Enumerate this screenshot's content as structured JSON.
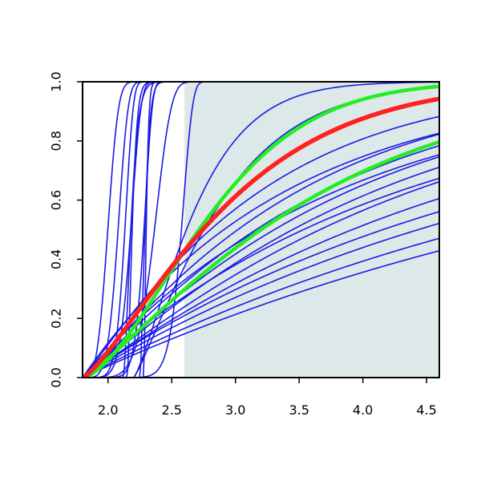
{
  "chart_data": {
    "type": "line",
    "title": "",
    "xlabel": "",
    "ylabel": "",
    "xlim": [
      1.8,
      4.6
    ],
    "ylim": [
      0.0,
      1.0
    ],
    "x_ticks": [
      "2.0",
      "2.5",
      "3.0",
      "3.5",
      "4.0",
      "4.5"
    ],
    "y_ticks": [
      "0.0",
      "0.2",
      "0.4",
      "0.6",
      "0.8",
      "1.0"
    ],
    "grid": false,
    "legend": "none",
    "shaded_region": {
      "x": [
        2.6,
        4.6
      ],
      "y": [
        0.0,
        1.0
      ],
      "color": "#dde8e8"
    },
    "colors": {
      "blue": "#1a1ae6",
      "red": "#ff2020",
      "green": "#22ee22"
    },
    "series": [
      {
        "color": "blue",
        "width": 1.6,
        "x0": 1.8,
        "k": 0.8,
        "n": 12.0
      },
      {
        "color": "blue",
        "width": 1.6,
        "x0": 1.8,
        "k": 0.5,
        "n": 10.0
      },
      {
        "color": "blue",
        "width": 1.6,
        "x0": 1.8,
        "k": 0.6,
        "n": 6.0
      },
      {
        "color": "blue",
        "width": 1.6,
        "x0": 1.8,
        "k": 0.4,
        "n": 6.5
      },
      {
        "color": "blue",
        "width": 1.6,
        "x0": 1.8,
        "k": 0.35,
        "n": 7.0
      },
      {
        "color": "blue",
        "width": 1.6,
        "x0": 1.8,
        "k": 0.3,
        "n": 5.0
      },
      {
        "color": "blue",
        "width": 1.6,
        "x0": 2.12,
        "k": 0.075,
        "n": 1.5
      },
      {
        "color": "blue",
        "width": 1.6,
        "x0": 2.15,
        "k": 0.05,
        "n": 1.5
      },
      {
        "color": "blue",
        "width": 1.6,
        "x0": 2.25,
        "k": 0.05,
        "n": 1.5
      },
      {
        "color": "blue",
        "width": 1.6,
        "x0": 2.28,
        "k": 0.025,
        "n": 1.5
      },
      {
        "color": "blue",
        "width": 1.6,
        "x0": 1.8,
        "k": 0.22,
        "n": 3.5
      },
      {
        "color": "blue",
        "width": 1.6,
        "x0": 2.2,
        "k": 0.55,
        "n": 1.3
      },
      {
        "color": "blue",
        "width": 1.6,
        "x0": 2.2,
        "k": 0.75,
        "n": 1.2
      },
      {
        "color": "blue",
        "width": 1.6,
        "x0": 1.8,
        "k": 1.4,
        "n": 1.1
      },
      {
        "color": "blue",
        "width": 1.6,
        "x0": 1.8,
        "k": 1.7,
        "n": 1.1
      },
      {
        "color": "blue",
        "width": 1.6,
        "x0": 1.8,
        "k": 1.9,
        "n": 1.1
      },
      {
        "color": "blue",
        "width": 1.6,
        "x0": 1.8,
        "k": 2.1,
        "n": 1.1
      },
      {
        "color": "blue",
        "width": 1.6,
        "x0": 1.8,
        "k": 2.3,
        "n": 1.1
      },
      {
        "color": "blue",
        "width": 1.6,
        "x0": 1.8,
        "k": 2.6,
        "n": 1.1
      },
      {
        "color": "blue",
        "width": 1.6,
        "x0": 1.8,
        "k": 3.0,
        "n": 1.05
      },
      {
        "color": "blue",
        "width": 1.6,
        "x0": 1.8,
        "k": 3.4,
        "n": 1.0
      },
      {
        "color": "blue",
        "width": 1.6,
        "x0": 1.8,
        "k": 3.8,
        "n": 1.0
      },
      {
        "color": "blue",
        "width": 1.6,
        "x0": 1.8,
        "k": 4.4,
        "n": 1.0
      },
      {
        "color": "blue",
        "width": 1.6,
        "x0": 1.8,
        "k": 5.0,
        "n": 1.0
      },
      {
        "color": "blue",
        "width": 1.6,
        "x0": 1.8,
        "k": 1.6,
        "n": 1.0
      },
      {
        "color": "blue",
        "width": 1.6,
        "x0": 1.8,
        "k": 2.0,
        "n": 1.0
      },
      {
        "color": "blue",
        "width": 1.6,
        "x0": 1.8,
        "k": 2.5,
        "n": 1.0
      },
      {
        "color": "green",
        "width": 4.5,
        "x0": 1.8,
        "k": 1.15,
        "n": 1.6
      },
      {
        "color": "green",
        "width": 4.5,
        "x0": 1.8,
        "k": 1.9,
        "n": 1.2
      },
      {
        "color": "red",
        "width": 5.5,
        "x0": 1.8,
        "k": 1.25,
        "n": 1.3
      }
    ]
  }
}
